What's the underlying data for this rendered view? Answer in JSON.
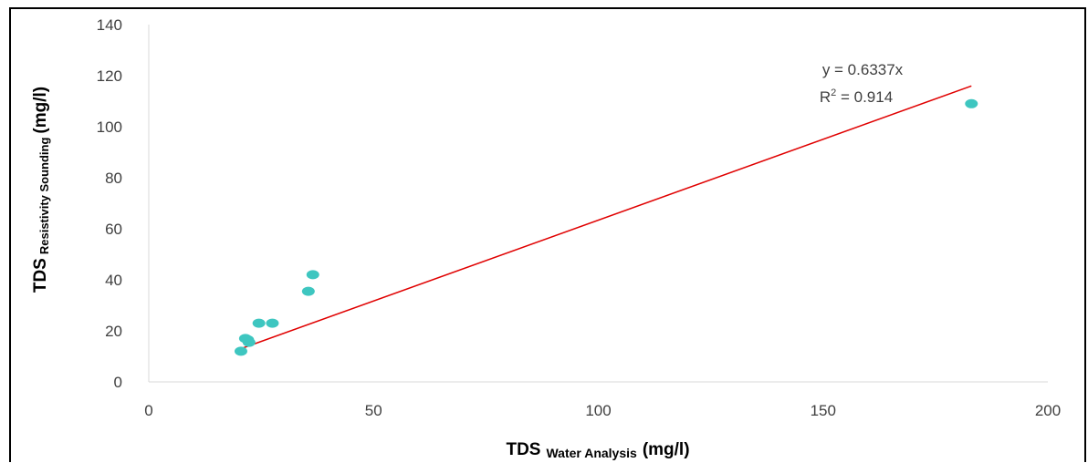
{
  "chart_data": {
    "type": "scatter",
    "xlabel": {
      "main": "TDS",
      "sub": "Water Analysis",
      "unit": "(mg/l)"
    },
    "ylabel": {
      "main": "TDS",
      "sub": "Resistivity Sounding",
      "unit": "(mg/l)"
    },
    "xlim": [
      0,
      200
    ],
    "ylim": [
      0,
      140
    ],
    "x_ticks": [
      0,
      50,
      100,
      150,
      200
    ],
    "y_ticks": [
      0,
      20,
      40,
      60,
      80,
      100,
      120,
      140
    ],
    "grid": false,
    "points": [
      {
        "x": 20.5,
        "y": 12
      },
      {
        "x": 21.5,
        "y": 17
      },
      {
        "x": 22,
        "y": 16.5
      },
      {
        "x": 22.3,
        "y": 15.5
      },
      {
        "x": 24.5,
        "y": 23
      },
      {
        "x": 27.5,
        "y": 23
      },
      {
        "x": 35.5,
        "y": 35.5
      },
      {
        "x": 36.5,
        "y": 42
      },
      {
        "x": 183,
        "y": 109
      }
    ],
    "point_color": "#3ec6c0",
    "trendline": {
      "slope": 0.6337,
      "x_range": [
        20.5,
        183
      ],
      "color": "#e00000"
    },
    "equation": "y = 0.6337x",
    "r2_label": "R",
    "r2_sup": "2",
    "r2_value": " = 0.914"
  }
}
